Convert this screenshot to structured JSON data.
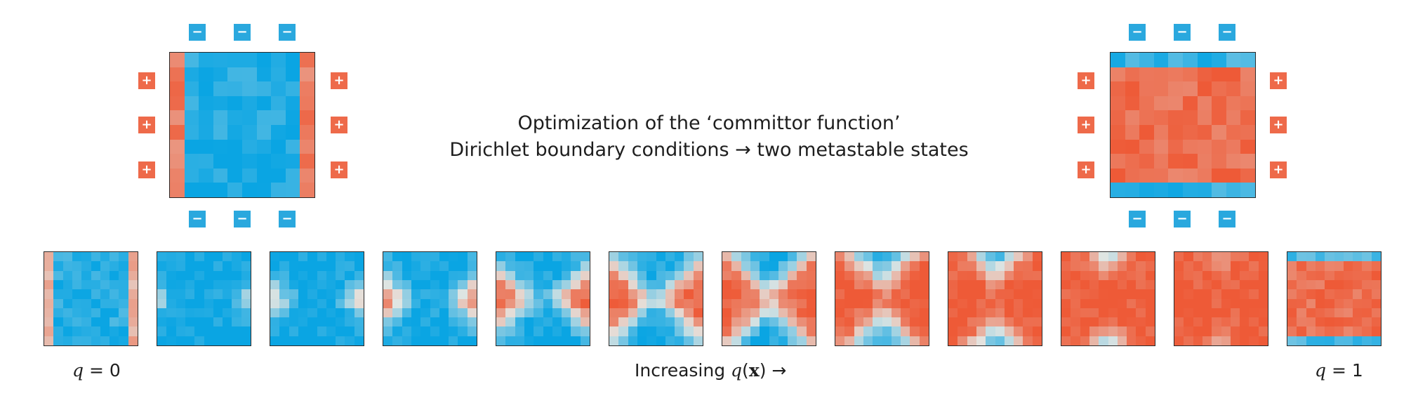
{
  "title": {
    "line1": "Optimization of the ‘committor function’",
    "line2": "Dirichlet boundary conditions → two metastable states"
  },
  "badges": {
    "negative": "−",
    "positive": "+"
  },
  "labels": {
    "left_var": "q",
    "left_eq": " = 0",
    "right_var": "q",
    "right_eq": " = 1",
    "increasing_prefix": "Increasing ",
    "increasing_var": "q",
    "increasing_open": "(",
    "increasing_x": "x",
    "increasing_close": ")",
    "increasing_arrow": " →"
  },
  "colors": {
    "blue": "#0aa5e3",
    "red": "#ee5a37",
    "neutral": "#e4e6e2",
    "frame": "#2a2a2a"
  },
  "grid_size": 10,
  "sequence_count": 12
}
